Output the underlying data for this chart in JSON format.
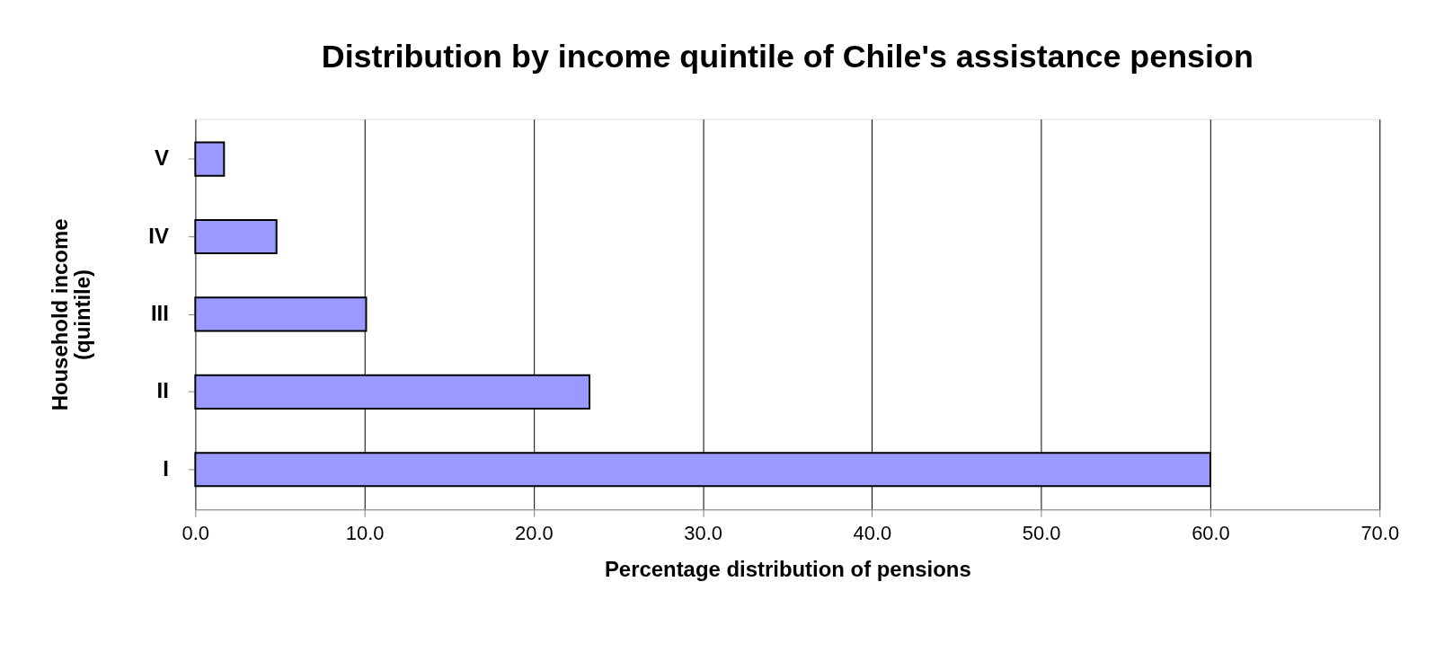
{
  "chart_data": {
    "type": "bar",
    "orientation": "horizontal",
    "title": "Distribution by income quintile of Chile's assistance pension",
    "xlabel": "Percentage distribution of pensions",
    "ylabel": "Household income\n(quintile)",
    "categories": [
      "V",
      "IV",
      "III",
      "II",
      "I"
    ],
    "values": [
      1.7,
      4.8,
      10.1,
      23.3,
      60.0
    ],
    "color": "#9999ff",
    "xlim": [
      0,
      70
    ],
    "xticks": [
      {
        "value": 0,
        "label": "0.0"
      },
      {
        "value": 10,
        "label": "10.0"
      },
      {
        "value": 20,
        "label": "20.0"
      },
      {
        "value": 30,
        "label": "30.0"
      },
      {
        "value": 40,
        "label": "40.0"
      },
      {
        "value": 50,
        "label": "50.0"
      },
      {
        "value": 60,
        "label": "60.0"
      },
      {
        "value": 70,
        "label": "70.0"
      }
    ],
    "grid": "x"
  }
}
